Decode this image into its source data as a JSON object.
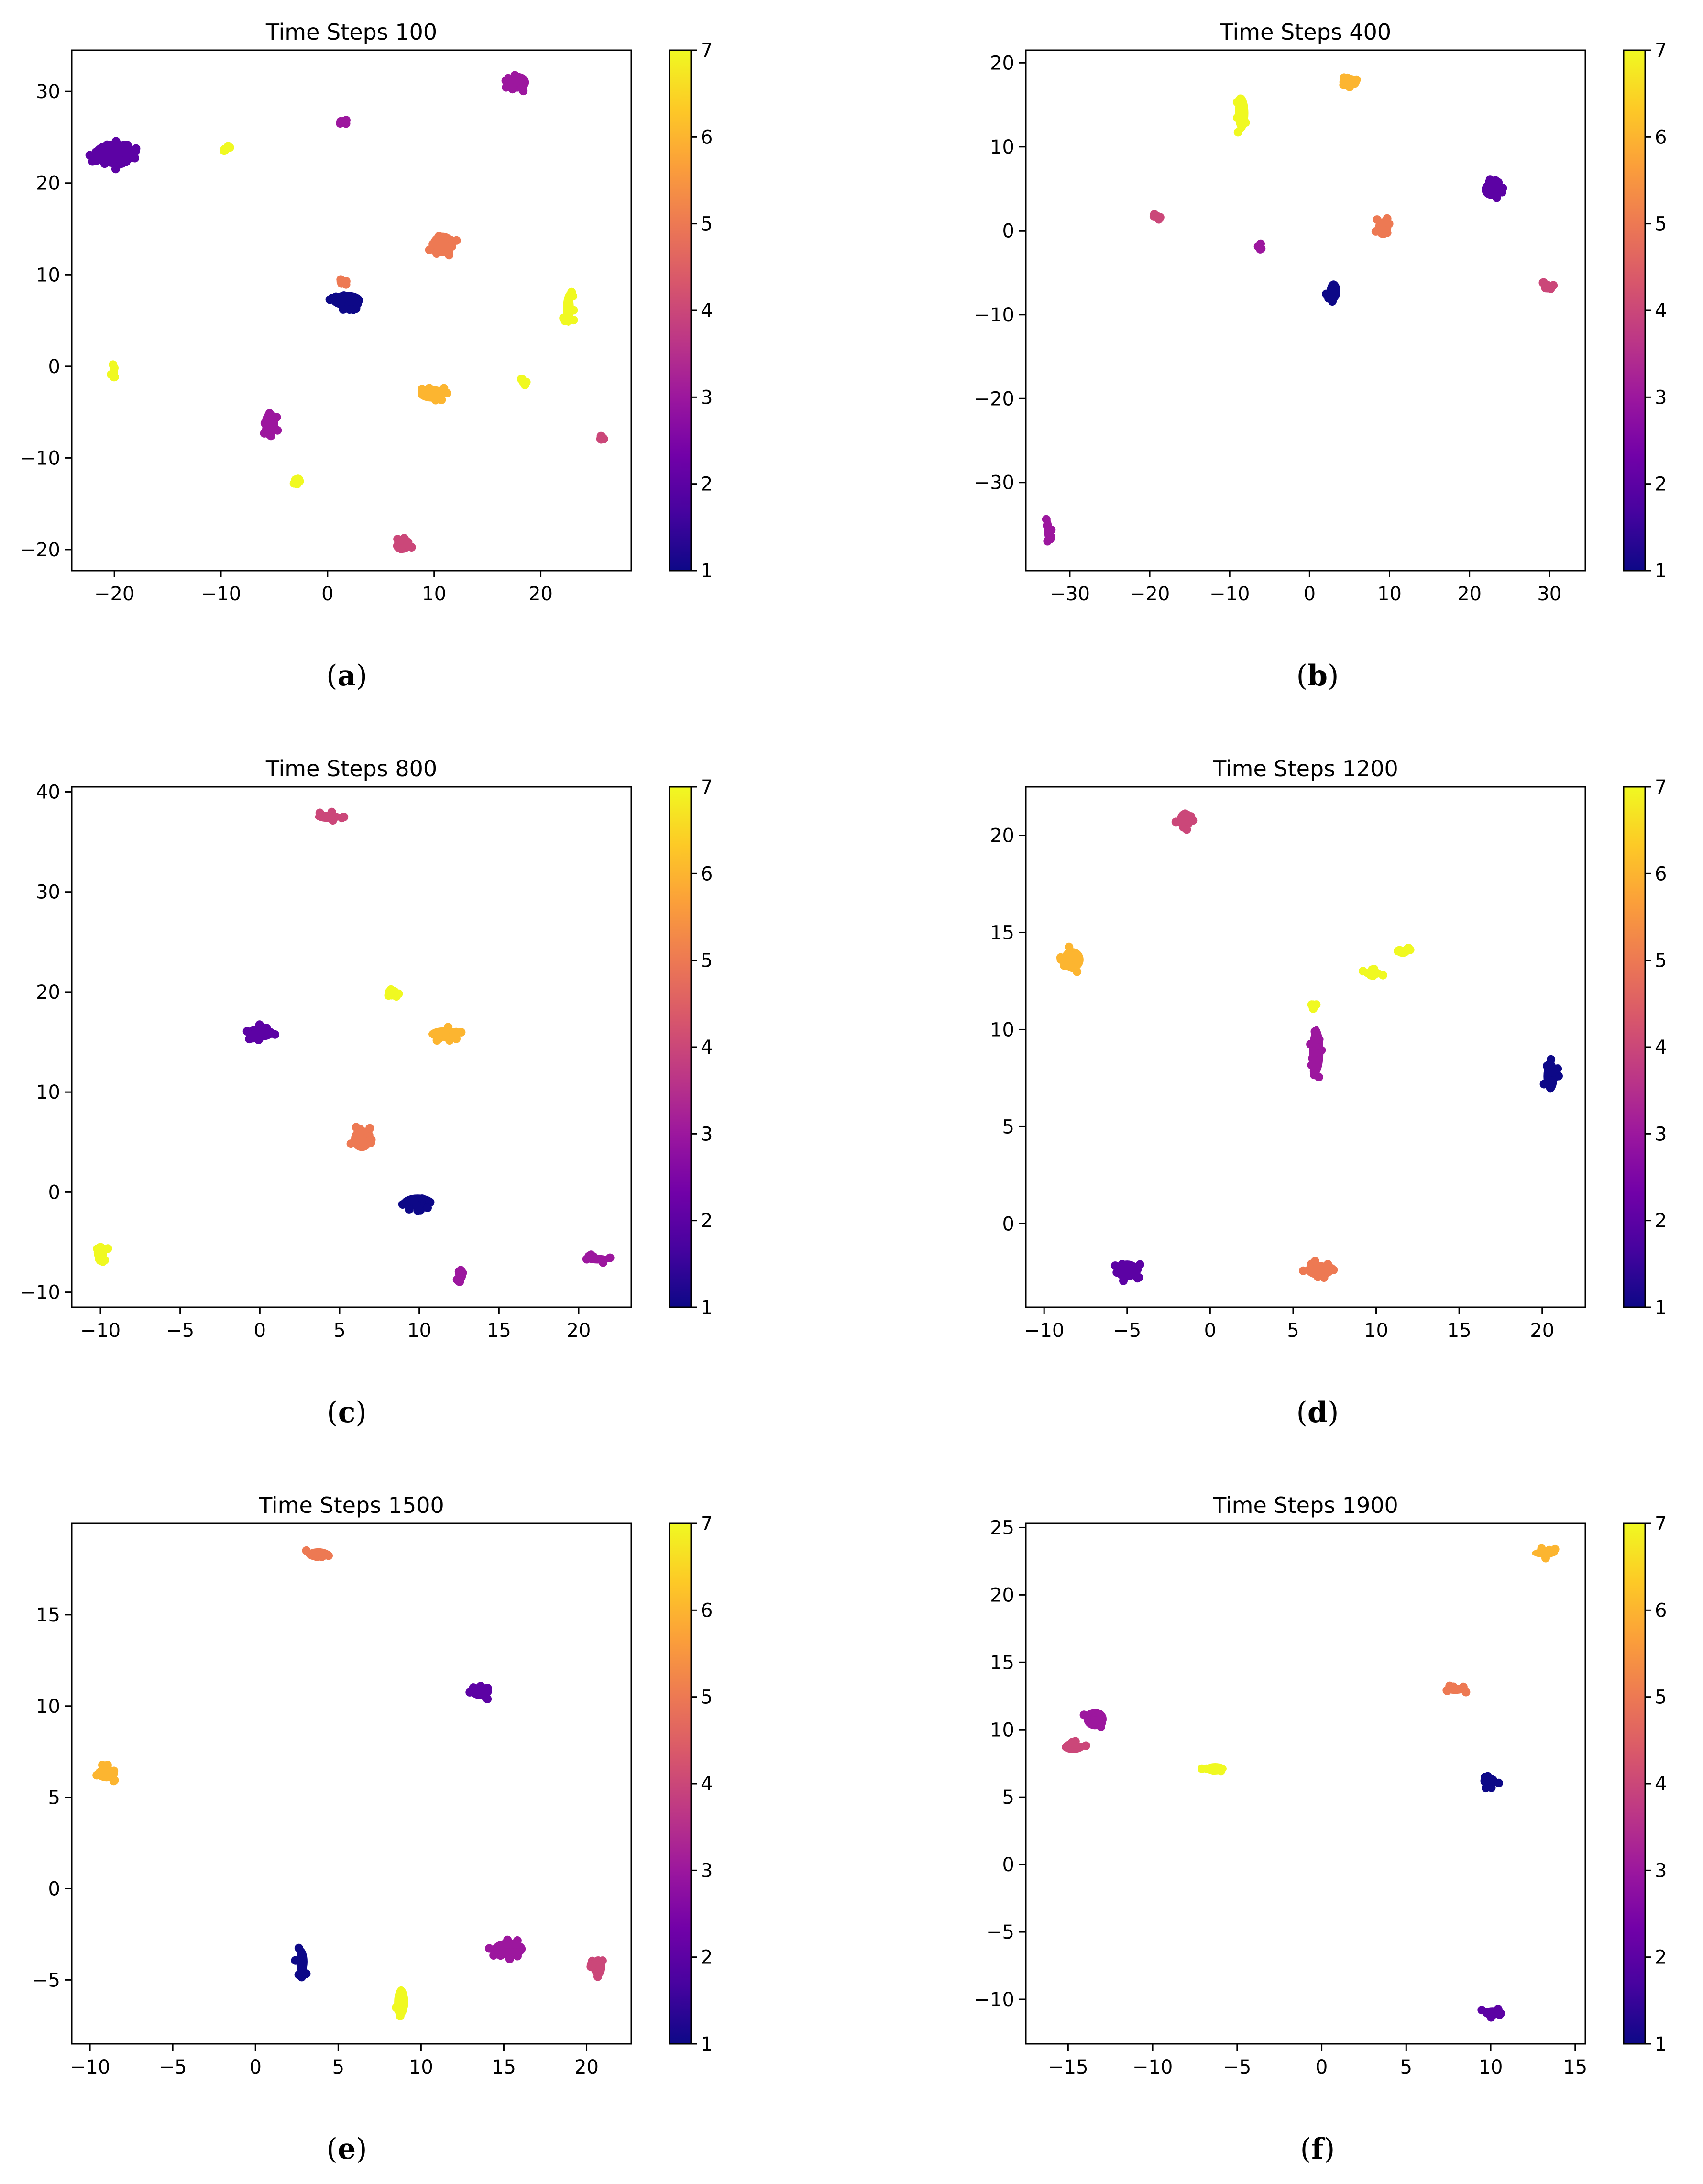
{
  "colormap": {
    "name": "plasma",
    "stops": [
      "#0d0887",
      "#46039f",
      "#7201a8",
      "#9c179e",
      "#bd3786",
      "#d8576b",
      "#ed7953",
      "#fb9f3a",
      "#fdca26",
      "#f0f921"
    ]
  },
  "chart_data": [
    {
      "type": "scatter",
      "title": "Time Steps 100",
      "caption_open": "(",
      "caption_letter": "a",
      "caption_close": ")",
      "xlim": [
        -24,
        28.5
      ],
      "ylim": [
        -22.3,
        34.5
      ],
      "xticks": [
        -20,
        -10,
        0,
        10,
        20
      ],
      "yticks": [
        -20,
        -10,
        0,
        10,
        20,
        30
      ],
      "colorbar": {
        "min": 1,
        "max": 7,
        "ticks": [
          1,
          2,
          3,
          4,
          5,
          6,
          7
        ]
      },
      "clusters": [
        {
          "x": -20,
          "y": 23.2,
          "rx": 2.4,
          "ry": 1.7,
          "c": 2
        },
        {
          "x": -9.5,
          "y": 23.8,
          "rx": 0.4,
          "ry": 0.4,
          "c": 7
        },
        {
          "x": 1.5,
          "y": 26.7,
          "rx": 0.3,
          "ry": 0.4,
          "c": 3
        },
        {
          "x": 17.8,
          "y": 31.0,
          "rx": 1.3,
          "ry": 1.2,
          "c": 3
        },
        {
          "x": 10.8,
          "y": 13.3,
          "rx": 1.4,
          "ry": 1.5,
          "c": 5
        },
        {
          "x": 1.8,
          "y": 7.2,
          "rx": 1.8,
          "ry": 1.1,
          "c": 1
        },
        {
          "x": 1.5,
          "y": 9.2,
          "rx": 0.3,
          "ry": 0.3,
          "c": 5
        },
        {
          "x": 22.6,
          "y": 6.3,
          "rx": 0.6,
          "ry": 2.2,
          "c": 7
        },
        {
          "x": -20,
          "y": -0.5,
          "rx": 0.4,
          "ry": 0.8,
          "c": 7
        },
        {
          "x": 9.8,
          "y": -3.0,
          "rx": 1.6,
          "ry": 1.0,
          "c": 6
        },
        {
          "x": 18.4,
          "y": -1.7,
          "rx": 0.3,
          "ry": 0.3,
          "c": 7
        },
        {
          "x": -5.4,
          "y": -6.2,
          "rx": 0.9,
          "ry": 1.6,
          "c": 3
        },
        {
          "x": 25.7,
          "y": -8.0,
          "rx": 0.3,
          "ry": 0.3,
          "c": 4
        },
        {
          "x": -3.0,
          "y": -12.5,
          "rx": 0.5,
          "ry": 0.4,
          "c": 7
        },
        {
          "x": 7.0,
          "y": -19.6,
          "rx": 1.0,
          "ry": 0.9,
          "c": 4
        }
      ]
    },
    {
      "type": "scatter",
      "title": "Time Steps 400",
      "caption_open": "(",
      "caption_letter": "b",
      "caption_close": ")",
      "xlim": [
        -35.5,
        34.5
      ],
      "ylim": [
        -40.5,
        21.5
      ],
      "xticks": [
        -30,
        -20,
        -10,
        0,
        10,
        20,
        30
      ],
      "yticks": [
        -30,
        -20,
        -10,
        0,
        10,
        20
      ],
      "colorbar": {
        "min": 1,
        "max": 7,
        "ticks": [
          1,
          2,
          3,
          4,
          5,
          6,
          7
        ]
      },
      "clusters": [
        {
          "x": -8.5,
          "y": 14.0,
          "rx": 1.0,
          "ry": 2.6,
          "c": 7
        },
        {
          "x": 5.0,
          "y": 17.7,
          "rx": 1.5,
          "ry": 1.0,
          "c": 6
        },
        {
          "x": 22.8,
          "y": 4.9,
          "rx": 1.5,
          "ry": 1.3,
          "c": 2
        },
        {
          "x": -19.0,
          "y": 1.8,
          "rx": 0.5,
          "ry": 0.5,
          "c": 4
        },
        {
          "x": -6.2,
          "y": -1.8,
          "rx": 0.4,
          "ry": 0.4,
          "c": 3
        },
        {
          "x": 9.2,
          "y": 0.3,
          "rx": 1.2,
          "ry": 1.4,
          "c": 5
        },
        {
          "x": 3.0,
          "y": -7.2,
          "rx": 1.0,
          "ry": 1.5,
          "c": 1
        },
        {
          "x": 29.8,
          "y": -6.5,
          "rx": 0.7,
          "ry": 0.6,
          "c": 4
        },
        {
          "x": -32.7,
          "y": -35.7,
          "rx": 0.6,
          "ry": 1.7,
          "c": 3
        }
      ]
    },
    {
      "type": "scatter",
      "title": "Time Steps 800",
      "caption_open": "(",
      "caption_letter": "c",
      "caption_close": ")",
      "xlim": [
        -11.8,
        23.3
      ],
      "ylim": [
        -11.5,
        40.5
      ],
      "xticks": [
        -10,
        -5,
        0,
        5,
        10,
        15,
        20
      ],
      "yticks": [
        -10,
        0,
        10,
        20,
        30,
        40
      ],
      "colorbar": {
        "min": 1,
        "max": 7,
        "ticks": [
          1,
          2,
          3,
          4,
          5,
          6,
          7
        ]
      },
      "clusters": [
        {
          "x": 4.3,
          "y": 37.5,
          "rx": 1.0,
          "ry": 0.6,
          "c": 4
        },
        {
          "x": 8.4,
          "y": 20.0,
          "rx": 0.4,
          "ry": 0.6,
          "c": 7
        },
        {
          "x": 11.6,
          "y": 15.8,
          "rx": 1.2,
          "ry": 0.8,
          "c": 6
        },
        {
          "x": 0.0,
          "y": 15.9,
          "rx": 1.1,
          "ry": 0.9,
          "c": 2
        },
        {
          "x": 6.4,
          "y": 5.3,
          "rx": 0.8,
          "ry": 1.4,
          "c": 5
        },
        {
          "x": 9.9,
          "y": -1.0,
          "rx": 1.2,
          "ry": 0.9,
          "c": 1
        },
        {
          "x": -10.0,
          "y": -6.0,
          "rx": 0.5,
          "ry": 1.1,
          "c": 7
        },
        {
          "x": 12.6,
          "y": -8.2,
          "rx": 0.4,
          "ry": 1.0,
          "c": 3
        },
        {
          "x": 21.2,
          "y": -6.7,
          "rx": 1.0,
          "ry": 0.5,
          "c": 3
        }
      ]
    },
    {
      "type": "scatter",
      "title": "Time Steps 1200",
      "caption_open": "(",
      "caption_letter": "d",
      "caption_close": ")",
      "xlim": [
        -11.1,
        22.6
      ],
      "ylim": [
        -4.3,
        22.5
      ],
      "xticks": [
        -10,
        -5,
        0,
        5,
        10,
        15,
        20
      ],
      "yticks": [
        0,
        5,
        10,
        15,
        20
      ],
      "colorbar": {
        "min": 1,
        "max": 7,
        "ticks": [
          1,
          2,
          3,
          4,
          5,
          6,
          7
        ]
      },
      "clusters": [
        {
          "x": -1.5,
          "y": 20.8,
          "rx": 0.6,
          "ry": 0.6,
          "c": 4
        },
        {
          "x": -8.3,
          "y": 13.6,
          "rx": 0.8,
          "ry": 0.7,
          "c": 6
        },
        {
          "x": 9.8,
          "y": 12.9,
          "rx": 0.7,
          "ry": 0.3,
          "c": 7
        },
        {
          "x": 11.6,
          "y": 14.0,
          "rx": 0.5,
          "ry": 0.3,
          "c": 7
        },
        {
          "x": 6.3,
          "y": 11.2,
          "rx": 0.2,
          "ry": 0.2,
          "c": 7
        },
        {
          "x": 6.4,
          "y": 8.9,
          "rx": 0.5,
          "ry": 1.5,
          "c": 3
        },
        {
          "x": 20.5,
          "y": 7.6,
          "rx": 0.5,
          "ry": 1.0,
          "c": 1
        },
        {
          "x": -5.0,
          "y": -2.4,
          "rx": 0.9,
          "ry": 0.6,
          "c": 2
        },
        {
          "x": 6.6,
          "y": -2.4,
          "rx": 1.0,
          "ry": 0.5,
          "c": 5
        }
      ]
    },
    {
      "type": "scatter",
      "title": "Time Steps 1500",
      "caption_open": "(",
      "caption_letter": "e",
      "caption_close": ")",
      "xlim": [
        -11.1,
        22.7
      ],
      "ylim": [
        -8.5,
        20.0
      ],
      "xticks": [
        -10,
        -5,
        0,
        5,
        10,
        15,
        20
      ],
      "yticks": [
        -5,
        0,
        5,
        10,
        15
      ],
      "colorbar": {
        "min": 1,
        "max": 7,
        "ticks": [
          1,
          2,
          3,
          4,
          5,
          6,
          7
        ]
      },
      "clusters": [
        {
          "x": 3.8,
          "y": 18.3,
          "rx": 0.9,
          "ry": 0.4,
          "c": 5
        },
        {
          "x": 13.6,
          "y": 10.8,
          "rx": 0.8,
          "ry": 0.5,
          "c": 2
        },
        {
          "x": -9.0,
          "y": 6.3,
          "rx": 0.8,
          "ry": 0.5,
          "c": 6
        },
        {
          "x": 2.8,
          "y": -4.0,
          "rx": 0.4,
          "ry": 0.9,
          "c": 1
        },
        {
          "x": 8.8,
          "y": -6.2,
          "rx": 0.5,
          "ry": 1.0,
          "c": 7
        },
        {
          "x": 15.3,
          "y": -3.3,
          "rx": 1.2,
          "ry": 0.6,
          "c": 3
        },
        {
          "x": 20.7,
          "y": -4.3,
          "rx": 0.5,
          "ry": 0.7,
          "c": 4
        }
      ]
    },
    {
      "type": "scatter",
      "title": "Time Steps 1900",
      "caption_open": "(",
      "caption_letter": "f",
      "caption_close": ")",
      "xlim": [
        -17.5,
        15.6
      ],
      "ylim": [
        -13.3,
        25.3
      ],
      "xticks": [
        -15,
        -10,
        -5,
        0,
        5,
        10,
        15
      ],
      "yticks": [
        -10,
        -5,
        0,
        5,
        10,
        15,
        20,
        25
      ],
      "colorbar": {
        "min": 1,
        "max": 7,
        "ticks": [
          1,
          2,
          3,
          4,
          5,
          6,
          7
        ]
      },
      "clusters": [
        {
          "x": 13.2,
          "y": 23.1,
          "rx": 0.9,
          "ry": 0.4,
          "c": 6
        },
        {
          "x": 7.9,
          "y": 13.0,
          "rx": 0.8,
          "ry": 0.4,
          "c": 5
        },
        {
          "x": -13.4,
          "y": 10.8,
          "rx": 0.8,
          "ry": 0.9,
          "c": 3
        },
        {
          "x": -14.7,
          "y": 8.7,
          "rx": 0.8,
          "ry": 0.5,
          "c": 4
        },
        {
          "x": -6.3,
          "y": 7.1,
          "rx": 0.8,
          "ry": 0.5,
          "c": 7
        },
        {
          "x": 9.9,
          "y": 6.2,
          "rx": 0.6,
          "ry": 0.6,
          "c": 1
        },
        {
          "x": 10.1,
          "y": -11.0,
          "rx": 0.7,
          "ry": 0.5,
          "c": 2
        }
      ]
    }
  ]
}
